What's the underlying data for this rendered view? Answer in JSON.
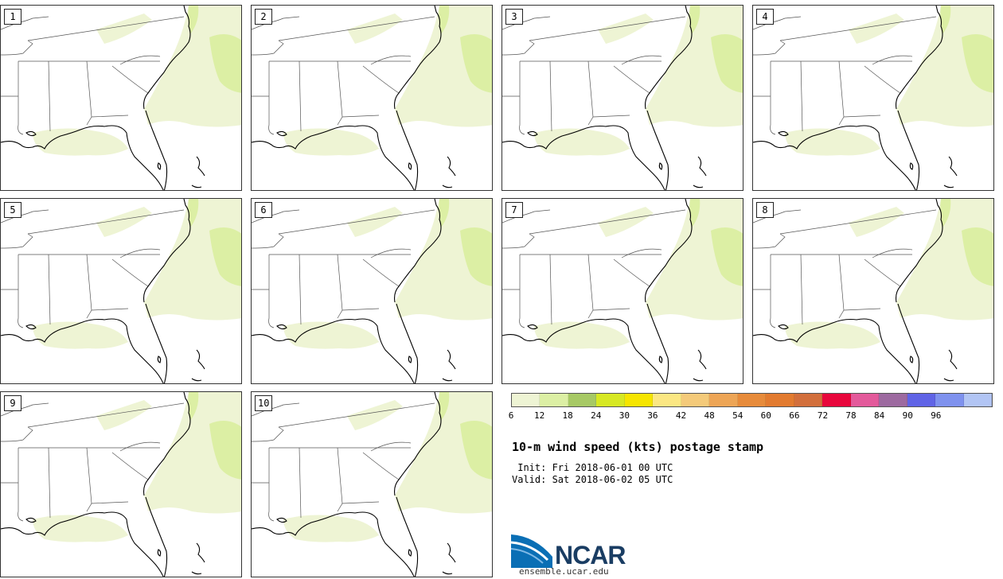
{
  "title": "10-m wind speed (kts) postage stamp",
  "init": " Init: Fri 2018-06-01 00 UTC",
  "valid": "Valid: Sat 2018-06-02 05 UTC",
  "panels": [
    {
      "label": "1"
    },
    {
      "label": "2"
    },
    {
      "label": "3"
    },
    {
      "label": "4"
    },
    {
      "label": "5"
    },
    {
      "label": "6"
    },
    {
      "label": "7"
    },
    {
      "label": "8"
    },
    {
      "label": "9"
    },
    {
      "label": "10"
    }
  ],
  "colorbar": {
    "colors": [
      "#eef4d4",
      "#dcefa4",
      "#a7c965",
      "#d7e824",
      "#f6e500",
      "#fbe783",
      "#f4ca7a",
      "#eda556",
      "#e78b3b",
      "#e27b30",
      "#d26f3c",
      "#e8073c",
      "#e35a9b",
      "#9d6aa0",
      "#6064e6",
      "#7f92ee",
      "#b2c5f4"
    ],
    "ticks": [
      "6",
      "12",
      "18",
      "24",
      "30",
      "36",
      "42",
      "48",
      "54",
      "60",
      "66",
      "72",
      "78",
      "84",
      "90",
      "96"
    ]
  },
  "logo": {
    "text": "NCAR",
    "url": "ensemble.ucar.edu",
    "color": "#0a6fb5"
  },
  "map_colors": {
    "land_outline": "#555555",
    "coast": "#000000",
    "wind_light": "#eef4d4",
    "wind_mid": "#dcefa4"
  }
}
